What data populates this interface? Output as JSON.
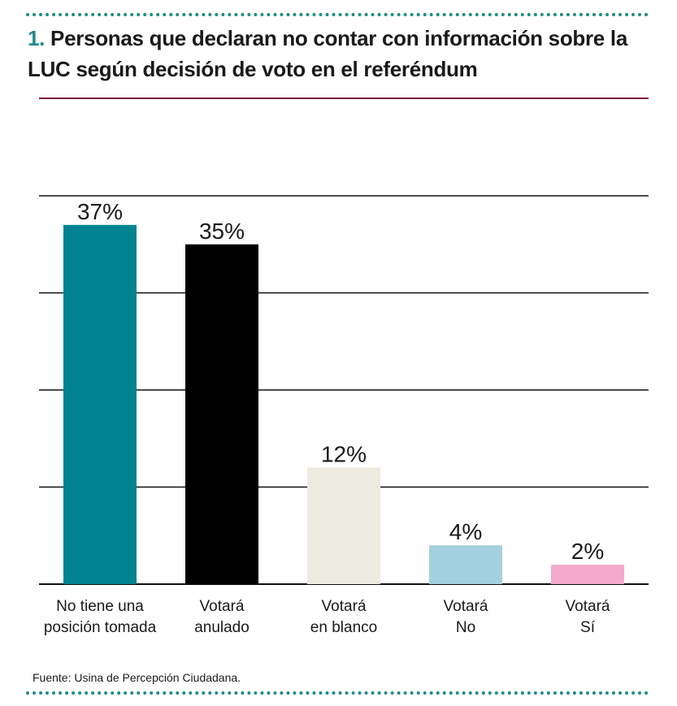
{
  "title": {
    "number": "1.",
    "text": "Personas que declaran no contar con información sobre la LUC según decisión de voto en el referéndum"
  },
  "source": "Fuente: Usina de Percepción Ciudadana.",
  "chart_data": {
    "type": "bar",
    "categories": [
      [
        "No tiene una",
        "posición tomada"
      ],
      [
        "Votará",
        "anulado"
      ],
      [
        "Votará",
        "en blanco"
      ],
      [
        "Votará",
        "No"
      ],
      [
        "Votará",
        "Sí"
      ]
    ],
    "values": [
      37,
      35,
      12,
      4,
      2
    ],
    "value_labels": [
      "37%",
      "35%",
      "12%",
      "4%",
      "2%"
    ],
    "colors": [
      "#00838f",
      "#000000",
      "#edebdf",
      "#a3d0df",
      "#f3a9cb"
    ],
    "ylim": [
      0,
      40
    ],
    "gridlines": [
      0,
      10,
      20,
      30,
      40
    ],
    "grid": true,
    "title": "",
    "xlabel": "",
    "ylabel": ""
  }
}
